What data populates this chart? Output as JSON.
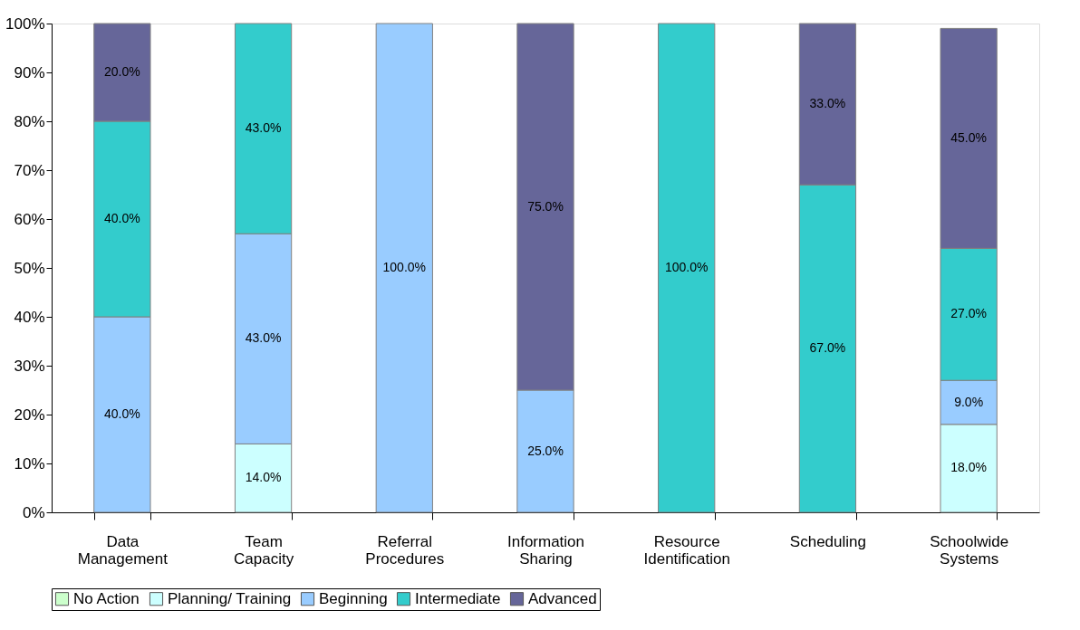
{
  "chart_data": {
    "type": "bar",
    "stacked": true,
    "categories": [
      "Data Management",
      "Team Capacity",
      "Referral Procedures",
      "Information Sharing",
      "Resource Identification",
      "Scheduling",
      "Schoolwide Systems"
    ],
    "series": [
      {
        "name": "No Action",
        "color": "#ccffcc",
        "values": [
          null,
          null,
          null,
          null,
          null,
          null,
          null
        ],
        "value_labels": [
          null,
          null,
          null,
          null,
          null,
          null,
          null
        ]
      },
      {
        "name": "Planning/ Training",
        "color": "#ccffff",
        "values": [
          null,
          14,
          null,
          null,
          null,
          null,
          18
        ],
        "value_labels": [
          null,
          "14.0%",
          null,
          null,
          null,
          null,
          "18.0%"
        ]
      },
      {
        "name": "Beginning",
        "color": "#99ccff",
        "values": [
          40,
          43,
          100,
          25,
          null,
          null,
          9
        ],
        "value_labels": [
          "40.0%",
          "43.0%",
          "100.0%",
          "25.0%",
          null,
          null,
          "9.0%"
        ]
      },
      {
        "name": "Intermediate",
        "color": "#33cccc",
        "values": [
          40,
          43,
          null,
          null,
          100,
          67,
          27
        ],
        "value_labels": [
          "40.0%",
          "43.0%",
          null,
          null,
          "100.0%",
          "67.0%",
          "27.0%"
        ]
      },
      {
        "name": "Advanced",
        "color": "#666699",
        "values": [
          20,
          null,
          null,
          75,
          null,
          33,
          45
        ],
        "value_labels": [
          "20.0%",
          null,
          null,
          "75.0%",
          null,
          "33.0%",
          "45.0%"
        ]
      }
    ],
    "ylim": [
      0,
      100
    ],
    "yticks": [
      {
        "value": 0,
        "label": "0%"
      },
      {
        "value": 10,
        "label": "10%"
      },
      {
        "value": 20,
        "label": "20%"
      },
      {
        "value": 30,
        "label": "30%"
      },
      {
        "value": 40,
        "label": "40%"
      },
      {
        "value": 50,
        "label": "50%"
      },
      {
        "value": 60,
        "label": "60%"
      },
      {
        "value": 70,
        "label": "70%"
      },
      {
        "value": 80,
        "label": "80%"
      },
      {
        "value": 90,
        "label": "90%"
      },
      {
        "value": 100,
        "label": "100%"
      }
    ],
    "grid": false,
    "legend": "bottom"
  }
}
